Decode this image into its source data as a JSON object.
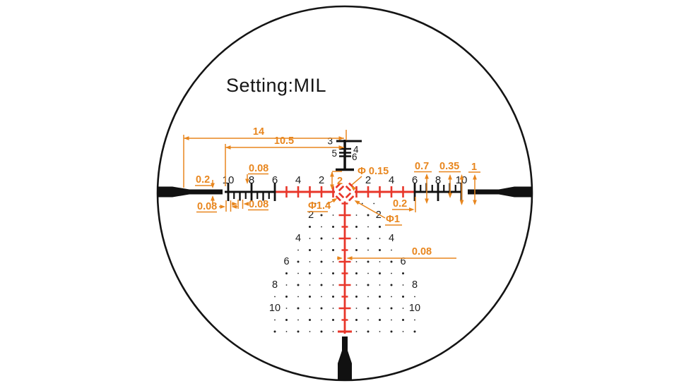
{
  "title": "Setting:MIL",
  "colors": {
    "red": "#e8362a",
    "orange": "#e8861e",
    "ink": "#1b1b1b",
    "dot": "#222222"
  },
  "h_scale_numbers": [
    {
      "text": "10",
      "mil": -10
    },
    {
      "text": "8",
      "mil": -8
    },
    {
      "text": "6",
      "mil": -6
    },
    {
      "text": "4",
      "mil": -4
    },
    {
      "text": "2",
      "mil": -2
    },
    {
      "text": "2",
      "mil": 2
    },
    {
      "text": "4",
      "mil": 4
    },
    {
      "text": "6",
      "mil": 6
    },
    {
      "text": "8",
      "mil": 8
    },
    {
      "text": "10",
      "mil": 10
    }
  ],
  "top_scale_labels": [
    {
      "text": "3",
      "side": "left"
    },
    {
      "text": "4",
      "side": "right"
    },
    {
      "text": "5",
      "side": "left"
    },
    {
      "text": "6",
      "side": "right"
    }
  ],
  "tree": {
    "rows": [
      {
        "mil": 1,
        "dots": [
          1.5,
          2.5
        ]
      },
      {
        "mil": 2,
        "dots": [
          1,
          2
        ],
        "label": "2",
        "label_mil": 2.9
      },
      {
        "mil": 3,
        "dots": [
          1,
          2,
          3
        ]
      },
      {
        "mil": 4,
        "dots": [
          1,
          2,
          3
        ],
        "label": "4",
        "label_mil": 4
      },
      {
        "mil": 5,
        "dots": [
          1,
          2,
          3,
          4
        ]
      },
      {
        "mil": 6,
        "dots": [
          1,
          2,
          3,
          4
        ],
        "label": "6",
        "label_mil": 5
      },
      {
        "mil": 7,
        "dots": [
          1,
          2,
          3,
          4,
          5
        ]
      },
      {
        "mil": 8,
        "dots": [
          1,
          2,
          3,
          4,
          5
        ],
        "label": "8",
        "label_mil": 6
      },
      {
        "mil": 9,
        "dots": [
          1,
          2,
          3,
          4,
          5,
          6
        ]
      },
      {
        "mil": 10,
        "dots": [
          1,
          2,
          3,
          4,
          5
        ],
        "label": "10",
        "label_mil": 6
      },
      {
        "mil": 11,
        "dots": [
          1,
          2,
          3,
          4,
          5,
          6
        ]
      },
      {
        "mil": 12,
        "dots": [
          1,
          2,
          3,
          4,
          5,
          6
        ]
      }
    ]
  },
  "dimensions": {
    "span14": "14",
    "span105": "10.5",
    "drop2": "2",
    "dotDia": "Φ 0.15",
    "xDia": "Φ1.4",
    "innerDia": "Φ1",
    "postThk": "0.2",
    "tickW8": "0.08",
    "tickW10": "0.08",
    "tickW9": "0.08",
    "tallTick": "0.7",
    "halfTick": "0.35",
    "gap1": "1",
    "edgeGap": "0.2",
    "lineW": "0.08"
  }
}
